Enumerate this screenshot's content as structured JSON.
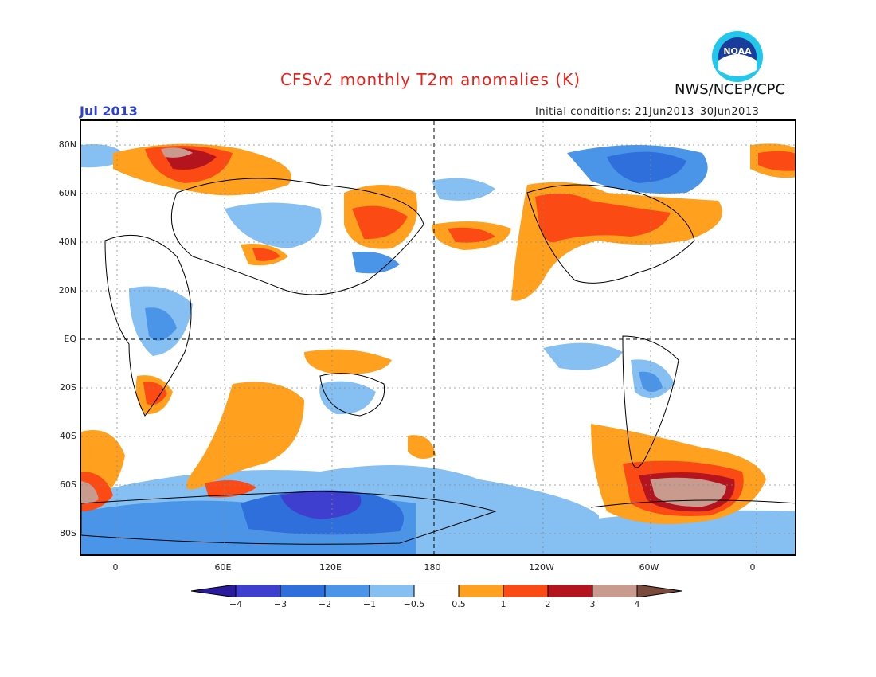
{
  "title": "CFSv2 monthly T2m anomalies (K)",
  "month": "Jul 2013",
  "initial_conditions": "Initial conditions: 21Jun2013–30Jun2013",
  "agency": "NWS/NCEP/CPC",
  "logo_text": "NOAA",
  "lat_labels": [
    "80N",
    "60N",
    "40N",
    "20N",
    "EQ",
    "20S",
    "40S",
    "60S",
    "80S"
  ],
  "lon_labels": [
    "0",
    "60E",
    "120E",
    "180",
    "120W",
    "60W",
    "0"
  ],
  "colorbar": {
    "labels": [
      "−4",
      "−3",
      "−2",
      "−1",
      "−0.5",
      "0.5",
      "1",
      "2",
      "3",
      "4"
    ],
    "colors": [
      "#2a1a9e",
      "#3f3fcf",
      "#2f6fdc",
      "#4b95e8",
      "#86bff2",
      "#ffffff",
      "#ffa01e",
      "#fb4a14",
      "#b4141e",
      "#c89b8e",
      "#7a4a3c"
    ]
  },
  "colors": {
    "title": "#e8221b",
    "month": "#2c3fd8",
    "warm_light": "#ffa01e",
    "warm": "#fb4a14",
    "hot": "#b4141e",
    "very_hot": "#c89b8e",
    "cool_light": "#86bff2",
    "cool": "#4b95e8",
    "cold": "#2f6fdc",
    "very_cold": "#3f3fcf"
  }
}
